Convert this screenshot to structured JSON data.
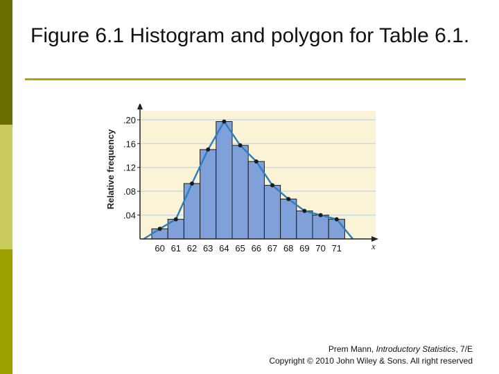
{
  "slide": {
    "title": "Figure 6.1 Histogram and polygon for Table 6.1.",
    "credit_author": "Prem Mann, ",
    "credit_book": "Introductory Statistics",
    "credit_edition": ", 7/E",
    "credit_copyright": "Copyright © 2010 John Wiley & Sons. All right reserved"
  },
  "colors": {
    "sidebar_dark": "#6b6e00",
    "sidebar_light": "#c9cc5c",
    "sidebar_mid": "#9ea000",
    "title_rule": "#b5a200",
    "plot_background": "#fbf3d6",
    "grid": "#c9dcea",
    "bar_fill": "#7fa0d8",
    "polygon_line": "#2f7fbf",
    "point": "#1a1a1a"
  },
  "chart_data": {
    "type": "bar",
    "overlay": "frequency polygon",
    "ylabel": "Relative frequency",
    "xlabel": "x",
    "categories": [
      "60",
      "61",
      "62",
      "63",
      "64",
      "65",
      "66",
      "67",
      "68",
      "69",
      "70",
      "71"
    ],
    "values": [
      0.017,
      0.033,
      0.093,
      0.15,
      0.197,
      0.157,
      0.13,
      0.09,
      0.067,
      0.047,
      0.04,
      0.033
    ],
    "polygon_endpoints": {
      "left": 59,
      "right": 72,
      "value": 0
    },
    "ylim": [
      0,
      0.215
    ],
    "yticks": [
      ".04",
      ".08",
      ".12",
      ".16",
      ".20"
    ],
    "ytick_values": [
      0.04,
      0.08,
      0.12,
      0.16,
      0.2
    ],
    "grid": true
  }
}
